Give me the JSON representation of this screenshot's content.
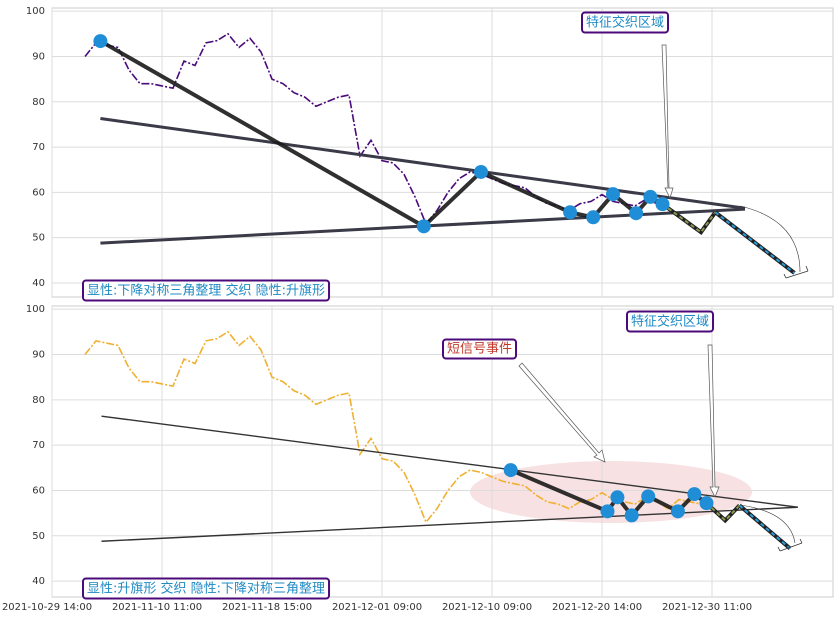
{
  "chart_data": [
    {
      "type": "line",
      "xlim": [
        0,
        71
      ],
      "ylim": [
        36.9,
        100.7
      ],
      "xticks": [
        0,
        10,
        20,
        30,
        40,
        50,
        60
      ],
      "yticks": [
        40,
        50,
        60,
        70,
        80,
        90,
        100
      ],
      "grid": true,
      "x": [
        3,
        4,
        5,
        6,
        7,
        8,
        9,
        10,
        11,
        12,
        13,
        14,
        15,
        16,
        17,
        18,
        19,
        20,
        21,
        22,
        23,
        24,
        25,
        26,
        27,
        28,
        29,
        30,
        31,
        32,
        33,
        34,
        35,
        36,
        37,
        38,
        39,
        40,
        41,
        42,
        43,
        44,
        45,
        46,
        47,
        48,
        49,
        50,
        51,
        52,
        53,
        54,
        55
      ],
      "series": [
        {
          "color": "#4b0a7a",
          "values": [
            90,
            93,
            92.5,
            92,
            87,
            84,
            84,
            83.5,
            83,
            89,
            88,
            93,
            93.5,
            95,
            92,
            94,
            91,
            85,
            84,
            82,
            81,
            79,
            80,
            81,
            81.5,
            68,
            71.5,
            67,
            66.5,
            64,
            59,
            53,
            56,
            60,
            63,
            64.5,
            64,
            63,
            62,
            61.5,
            61,
            59,
            57.5,
            57,
            56,
            57.5,
            58,
            59.5,
            58,
            57.5,
            57,
            58.5,
            57.5
          ]
        }
      ],
      "trend_lines": [
        {
          "color": "#3a3a48",
          "x": [
            4.4,
            63
          ],
          "values": [
            76.3,
            56.5
          ]
        },
        {
          "color": "#3a3a48",
          "x": [
            4.4,
            63
          ],
          "values": [
            48.8,
            56.3
          ]
        }
      ],
      "pattern": {
        "color": "#1a1a1a",
        "point_color": "#1f8ed6",
        "x": [
          4.4,
          33.8,
          39,
          47.1,
          49.2,
          51,
          53.1,
          54.4,
          55.5
        ],
        "values": [
          93.4,
          52.5,
          64.5,
          55.6,
          54.5,
          59.6,
          55.4,
          59,
          57.4
        ]
      },
      "forecast": [
        {
          "color": "#8a9a50",
          "x": [
            55.5,
            59,
            60.3
          ],
          "values": [
            57.4,
            51.2,
            55.6
          ]
        },
        {
          "color": "#2a9ad6",
          "x": [
            60.3,
            67.5
          ],
          "values": [
            55.6,
            42.2
          ]
        }
      ],
      "annotations": [
        "特征交织区域"
      ],
      "label": "显性:下降对称三角整理 交织 隐性:升旗形"
    },
    {
      "type": "line",
      "xlim": [
        0,
        71
      ],
      "ylim": [
        36.5,
        100.7
      ],
      "xticks": [
        {
          "value": 0,
          "label": "2021-10-29 14:00"
        },
        {
          "value": 10,
          "label": "2021-11-10 11:00"
        },
        {
          "value": 20,
          "label": "2021-11-18 15:00"
        },
        {
          "value": 30,
          "label": "2021-12-01 09:00"
        },
        {
          "value": 40,
          "label": "2021-12-10 09:00"
        },
        {
          "value": 50,
          "label": "2021-12-20 14:00"
        },
        {
          "value": 60,
          "label": "2021-12-30 11:00"
        }
      ],
      "yticks": [
        40,
        50,
        60,
        70,
        80,
        90,
        100
      ],
      "grid": true,
      "x": [
        3,
        4,
        5,
        6,
        7,
        8,
        9,
        10,
        11,
        12,
        13,
        14,
        15,
        16,
        17,
        18,
        19,
        20,
        21,
        22,
        23,
        24,
        25,
        26,
        27,
        28,
        29,
        30,
        31,
        32,
        33,
        34,
        35,
        36,
        37,
        38,
        39,
        40,
        41,
        42,
        43,
        44,
        45,
        46,
        47,
        48,
        49,
        50,
        51,
        52,
        53,
        54,
        55,
        56,
        57,
        58,
        59
      ],
      "series": [
        {
          "color": "#f0b030",
          "values": [
            90,
            93,
            92.5,
            92,
            87,
            84,
            84,
            83.5,
            83,
            89,
            88,
            93,
            93.5,
            95,
            92,
            94,
            91,
            85,
            84,
            82,
            81,
            79,
            80,
            81,
            81.5,
            68,
            71.5,
            67,
            66.5,
            64,
            59,
            53,
            56,
            60,
            63,
            64.5,
            64,
            63,
            62,
            61.5,
            61,
            59,
            57.5,
            57,
            56,
            57.5,
            58,
            59.5,
            58,
            57.5,
            57,
            58.5,
            57.5,
            56,
            58,
            57.5,
            57
          ]
        }
      ],
      "trend_lines": [
        {
          "color": "#333333",
          "x": [
            4.5,
            67.8
          ],
          "values": [
            76.4,
            56.3
          ]
        },
        {
          "color": "#333333",
          "x": [
            4.5,
            67.8
          ],
          "values": [
            48.8,
            56.3
          ]
        }
      ],
      "pattern": {
        "color": "#1a1a1a",
        "point_color": "#1f8ed6",
        "x": [
          41.7,
          50.5,
          51.4,
          52.7,
          54.2,
          56.9,
          58.4,
          59.5
        ],
        "values": [
          64.5,
          55.4,
          58.5,
          54.5,
          58.7,
          55.4,
          59.2,
          57.2
        ]
      },
      "forecast": [
        {
          "color": "#8a9a50",
          "x": [
            59.5,
            61.2,
            62.5
          ],
          "values": [
            57.2,
            53.4,
            56.7
          ]
        },
        {
          "color": "#2a9ad6",
          "x": [
            62.5,
            67.1
          ],
          "values": [
            56.7,
            47.2
          ]
        }
      ],
      "annotations": [
        "短信号事件",
        "特征交织区域"
      ],
      "label": "显性:升旗形 交织 隐性:下降对称三角整理"
    }
  ]
}
